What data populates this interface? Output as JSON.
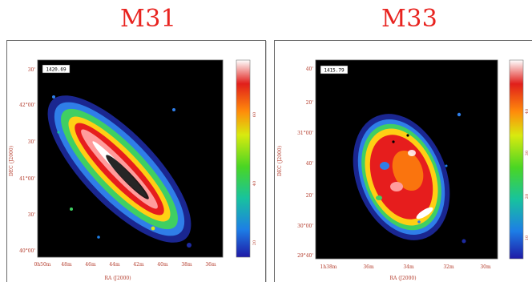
{
  "titles": {
    "left": "M31",
    "right": "M33"
  },
  "left_panel": {
    "freq_label": "1420.69",
    "xaxis_title": "RA (J2000)",
    "yaxis_title": "DEC (J2000)",
    "x_ticks": [
      "0h50m",
      "48m",
      "46m",
      "44m",
      "42m",
      "40m",
      "38m",
      "36m"
    ],
    "y_ticks": [
      "30'",
      "42°00'",
      "30'",
      "41°00'",
      "30'",
      "40°00'"
    ],
    "colorbar_ticks": [
      "60",
      "40",
      "20"
    ]
  },
  "right_panel": {
    "freq_label": "1415.79",
    "xaxis_title": "RA (J2000)",
    "yaxis_title": "DEC (J2000)",
    "x_ticks": [
      "1h38m",
      "36m",
      "34m",
      "32m",
      "30m"
    ],
    "y_ticks": [
      "40'",
      "20'",
      "31°00'",
      "40'",
      "20'",
      "30°00'",
      "29°40'"
    ],
    "colorbar_ticks": [
      "40",
      "30",
      "20",
      "10"
    ]
  },
  "colors": {
    "title_red": "#e8231f"
  }
}
